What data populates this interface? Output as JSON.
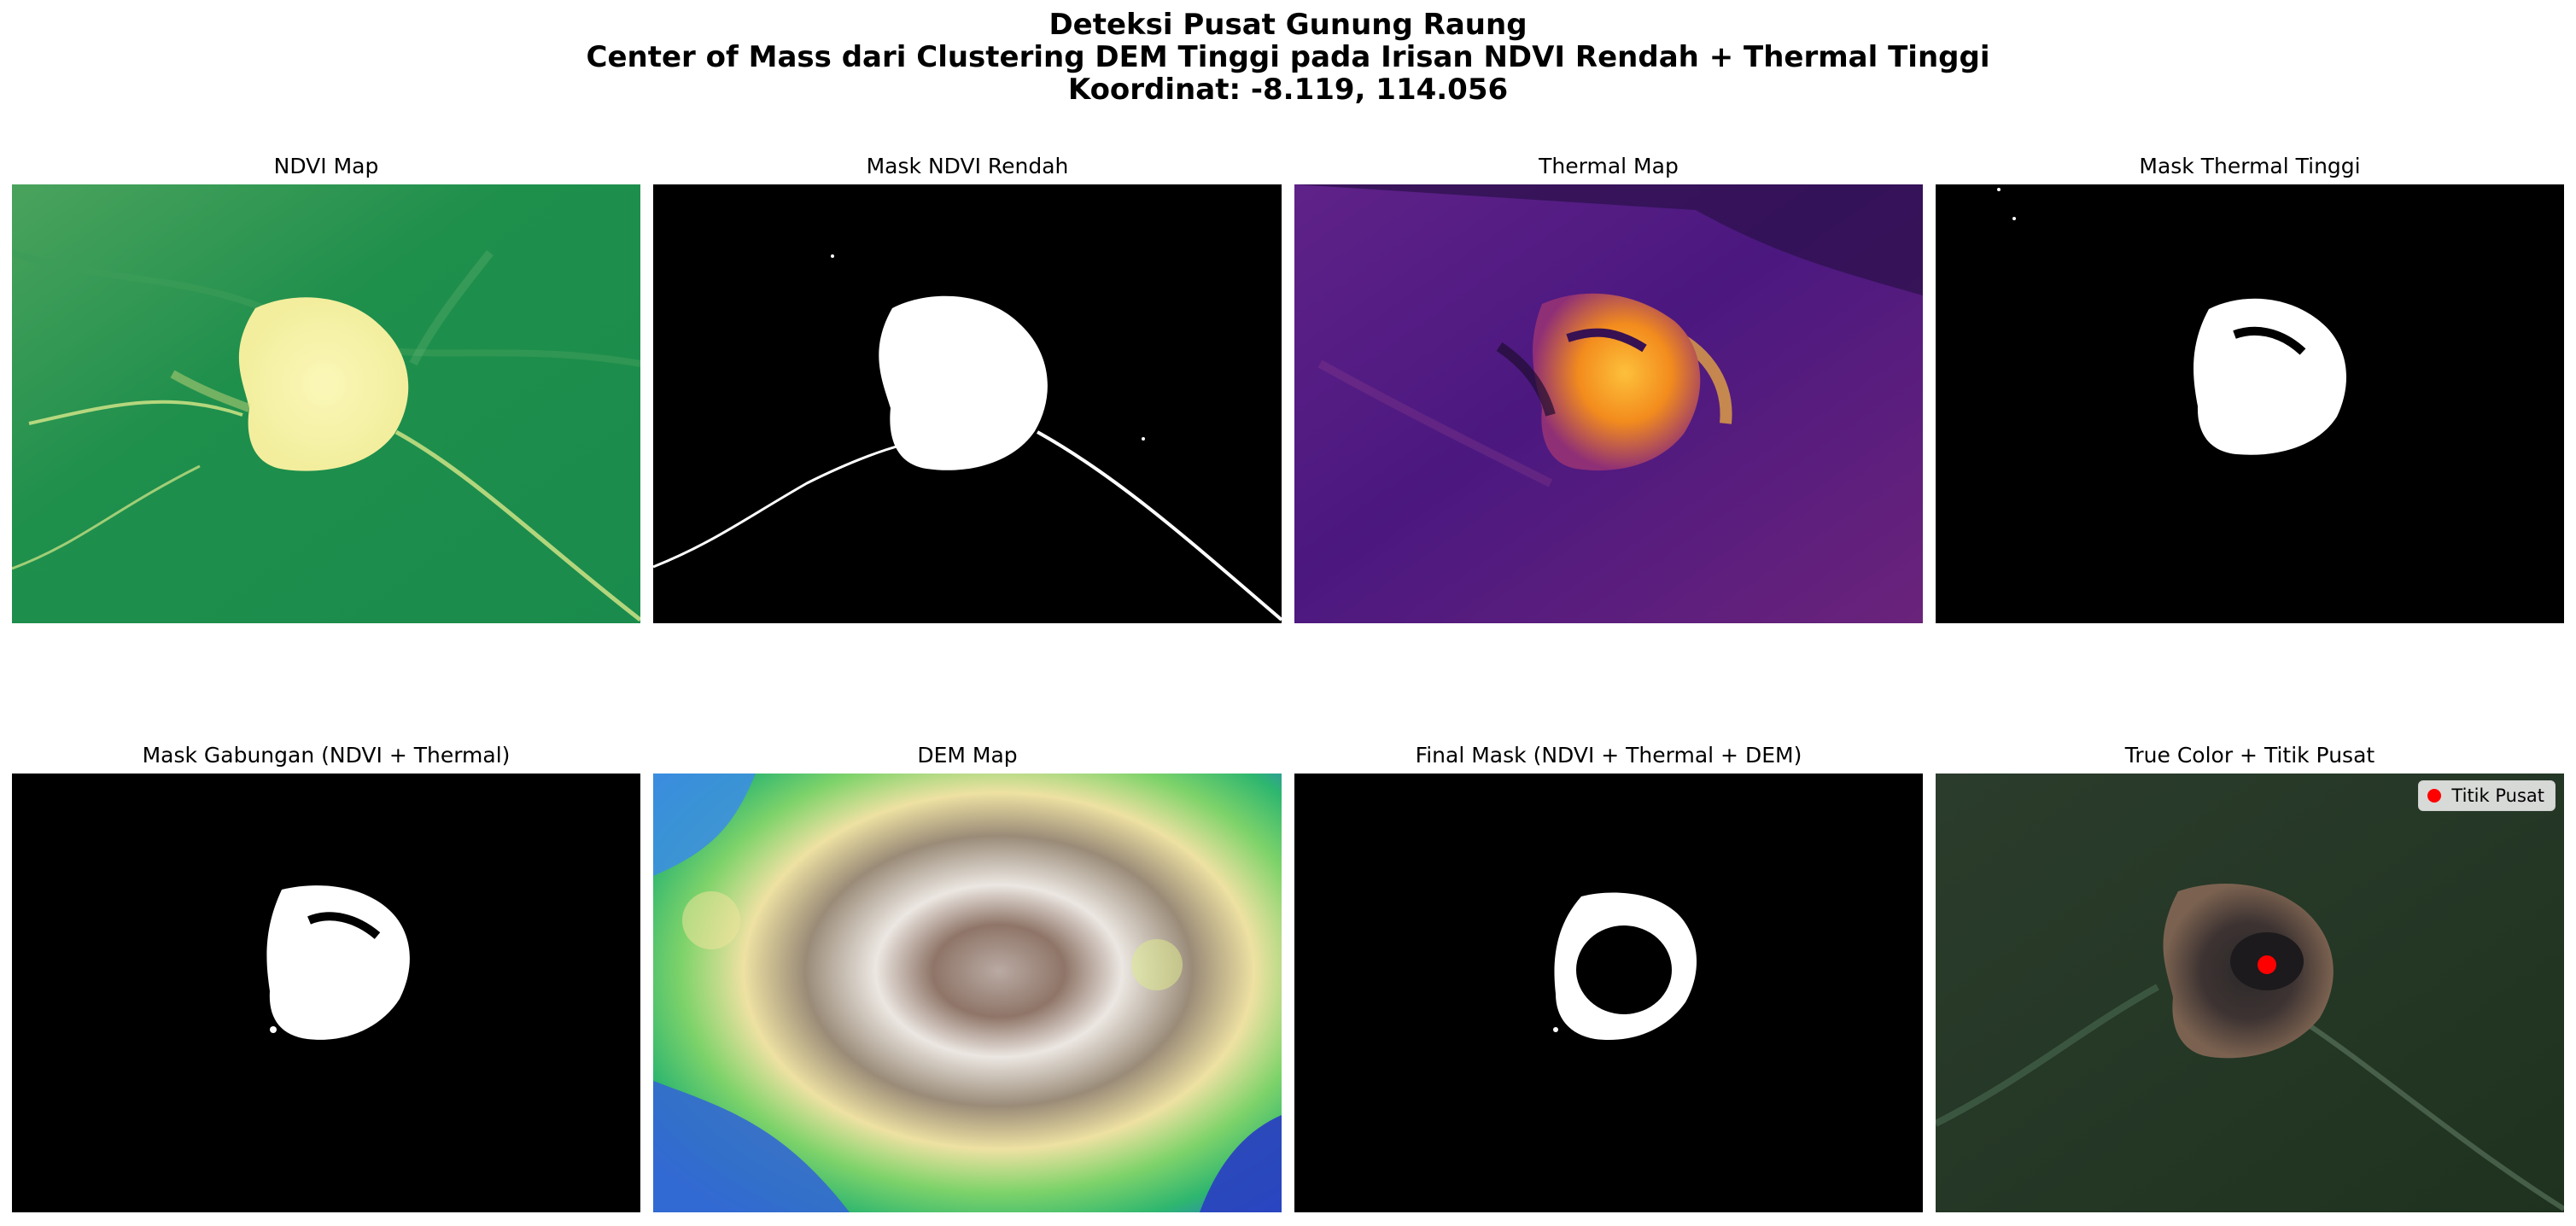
{
  "figure": {
    "title_line1": "Deteksi Pusat Gunung Raung",
    "title_line2": "Center of Mass dari Clustering DEM Tinggi pada Irisan NDVI Rendah + Thermal Tinggi",
    "title_line3": "Koordinat: -8.119, 114.056"
  },
  "panels": [
    {
      "title": "NDVI Map"
    },
    {
      "title": "Mask NDVI Rendah"
    },
    {
      "title": "Thermal Map"
    },
    {
      "title": "Mask Thermal Tinggi"
    },
    {
      "title": "Mask Gabungan (NDVI + Thermal)"
    },
    {
      "title": "DEM Map"
    },
    {
      "title": "Final Mask (NDVI + Thermal + DEM)"
    },
    {
      "title": "True Color + Titik Pusat"
    }
  ],
  "legend": {
    "label": "Titik Pusat",
    "marker_color": "#ff0000"
  },
  "colors": {
    "ndvi_background": "#1e8f4f",
    "ndvi_crater": "#f7f3a1",
    "thermal_background": "#4a177f",
    "thermal_hot": "#f6a21a",
    "mask_background": "#000000",
    "mask_foreground": "#ffffff",
    "true_color_background": "#243722",
    "true_color_crater": "#7b6250"
  }
}
